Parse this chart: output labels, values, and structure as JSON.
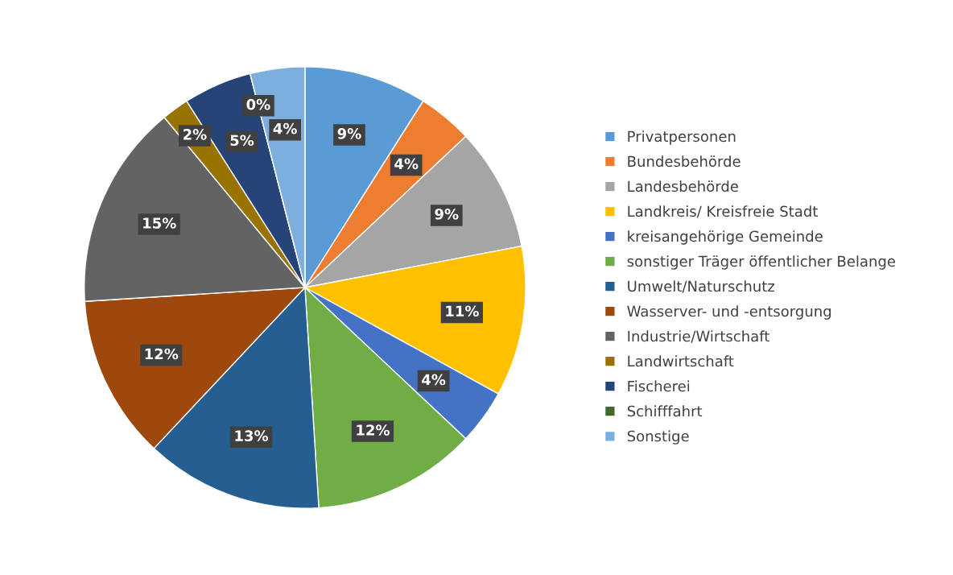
{
  "chart_data": {
    "type": "pie",
    "categories": [
      "Privatpersonen",
      "Bundesbehörde",
      "Landesbehörde",
      "Landkreis/ Kreisfreie Stadt",
      "kreisangehörige Gemeinde",
      "sonstiger Träger öffentlicher Belange",
      "Umwelt/Naturschutz",
      "Wasserver- und -entsorgung",
      "Industrie/Wirtschaft",
      "Landwirtschaft",
      "Fischerei",
      "Schifffahrt",
      "Sonstige"
    ],
    "values": [
      9,
      4,
      9,
      11,
      4,
      12,
      13,
      12,
      15,
      2,
      5,
      0,
      4
    ],
    "value_labels": [
      "9%",
      "4%",
      "9%",
      "11%",
      "4%",
      "12%",
      "13%",
      "12%",
      "15%",
      "2%",
      "5%",
      "0%",
      "4%"
    ],
    "colors": [
      "#5b9bd5",
      "#ed7d31",
      "#a5a5a5",
      "#ffc000",
      "#4472c4",
      "#70ad47",
      "#255e91",
      "#9e480e",
      "#636363",
      "#997300",
      "#264478",
      "#43682b",
      "#7cafdd"
    ],
    "legend": "right"
  }
}
